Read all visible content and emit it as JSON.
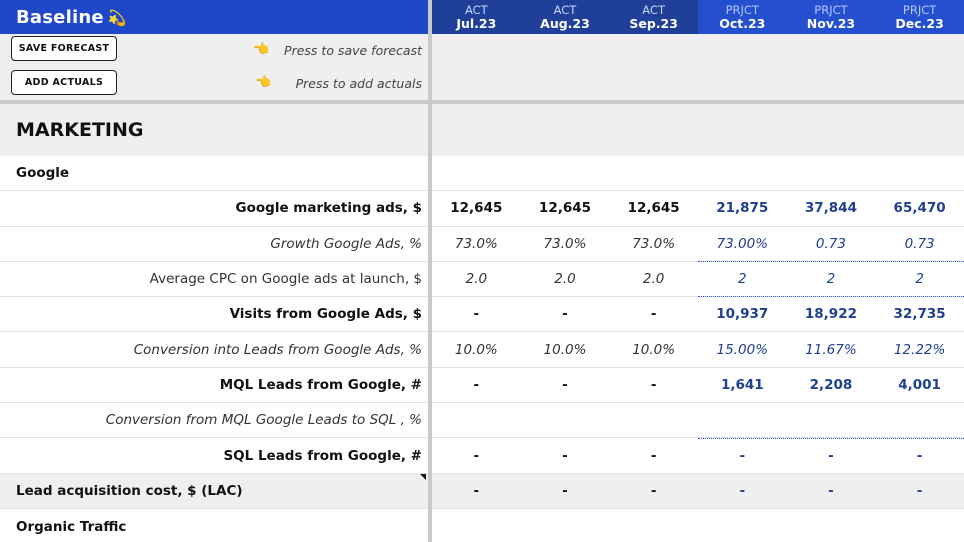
{
  "header": {
    "title": "Baseline",
    "months": [
      {
        "type": "ACT",
        "date": "Jul.23"
      },
      {
        "type": "ACT",
        "date": "Aug.23"
      },
      {
        "type": "ACT",
        "date": "Sep.23"
      },
      {
        "type": "PRJCT",
        "date": "Oct.23"
      },
      {
        "type": "PRJCT",
        "date": "Nov.23"
      },
      {
        "type": "PRJCT",
        "date": "Dec.23"
      }
    ]
  },
  "controls": {
    "save_label": "SAVE FORECAST",
    "save_hint": "Press to save forecast",
    "add_label": "ADD ACTUALS",
    "add_hint": "Press to add actuals"
  },
  "section": {
    "title": "MARKETING",
    "google_group": "Google",
    "organic_group": "Organic Traffic"
  },
  "rows": [
    {
      "label": "Google marketing ads, $",
      "values": [
        "12,645",
        "12,645",
        "12,645",
        "21,875",
        "37,844",
        "65,470"
      ]
    },
    {
      "label": "Growth Google Ads, %",
      "values": [
        "73.0%",
        "73.0%",
        "73.0%",
        "73.00%",
        "0.73",
        "0.73"
      ]
    },
    {
      "label": "Average CPC on Google ads at launch, $",
      "values": [
        "2.0",
        "2.0",
        "2.0",
        "2",
        "2",
        "2"
      ]
    },
    {
      "label": "Visits from Google Ads, $",
      "values": [
        "-",
        "-",
        "-",
        "10,937",
        "18,922",
        "32,735"
      ]
    },
    {
      "label": "Conversion into Leads from Google Ads, %",
      "values": [
        "10.0%",
        "10.0%",
        "10.0%",
        "15.00%",
        "11.67%",
        "12.22%"
      ]
    },
    {
      "label": "MQL Leads from Google, #",
      "values": [
        "-",
        "-",
        "-",
        "1,641",
        "2,208",
        "4,001"
      ]
    },
    {
      "label": "Conversion from MQL Google Leads to SQL , %",
      "values": [
        "",
        "",
        "",
        "",
        "",
        ""
      ]
    },
    {
      "label": "SQL Leads from Google, #",
      "values": [
        "-",
        "-",
        "-",
        "-",
        "-",
        "-"
      ]
    },
    {
      "label": "Lead acquisition cost, $ (LAC)",
      "values": [
        "-",
        "-",
        "-",
        "-",
        "-",
        "-"
      ]
    }
  ],
  "colors": {
    "header_left": "#1f48c8",
    "act_header": "#1f3f98",
    "prj_header": "#2450d0",
    "projection_text": "#1f3f8f"
  }
}
